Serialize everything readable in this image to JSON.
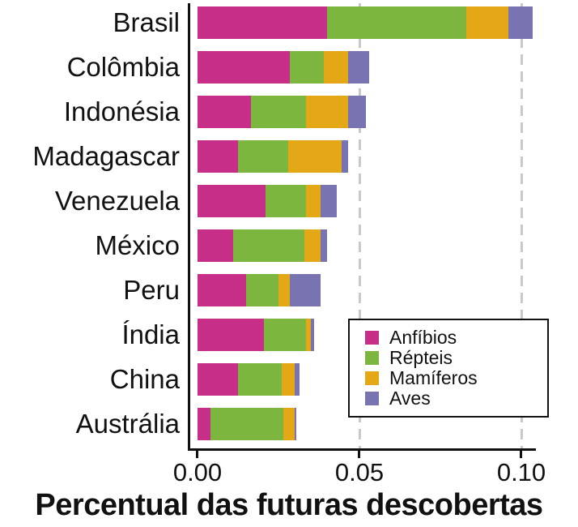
{
  "chart_data": {
    "type": "bar",
    "orientation": "horizontal",
    "stacked": true,
    "title": "",
    "xlabel": "Percentual das futuras descobertas",
    "ylabel": "",
    "xlim": [
      0,
      0.105
    ],
    "x_ticks": [
      "0.00",
      "0.05",
      "0.10"
    ],
    "x_tick_values": [
      0,
      0.05,
      0.1
    ],
    "gridlines": {
      "values": [
        0.05,
        0.1
      ],
      "style": "dashed",
      "color": "#c9c9c9"
    },
    "categories": [
      "Brasil",
      "Colômbia",
      "Indonésia",
      "Madagascar",
      "Venezuela",
      "México",
      "Peru",
      "Índia",
      "China",
      "Austrália"
    ],
    "series": [
      {
        "name": "Anfíbios",
        "color": "#C62E87",
        "values": [
          0.04,
          0.0285,
          0.0165,
          0.0125,
          0.021,
          0.011,
          0.015,
          0.0205,
          0.0125,
          0.004
        ]
      },
      {
        "name": "Répteis",
        "color": "#7CB63F",
        "values": [
          0.043,
          0.0105,
          0.017,
          0.0155,
          0.0125,
          0.022,
          0.01,
          0.013,
          0.0135,
          0.0225
        ]
      },
      {
        "name": "Mamíferos",
        "color": "#E4A716",
        "values": [
          0.013,
          0.0075,
          0.013,
          0.0165,
          0.0045,
          0.005,
          0.0035,
          0.0015,
          0.004,
          0.0035
        ]
      },
      {
        "name": "Aves",
        "color": "#7874B2",
        "values": [
          0.0075,
          0.0065,
          0.0055,
          0.002,
          0.005,
          0.002,
          0.0095,
          0.001,
          0.0015,
          0.0005
        ]
      }
    ],
    "legend": {
      "position": "right-center",
      "entries": [
        "Anfíbios",
        "Répteis",
        "Mamíferos",
        "Aves"
      ]
    }
  }
}
